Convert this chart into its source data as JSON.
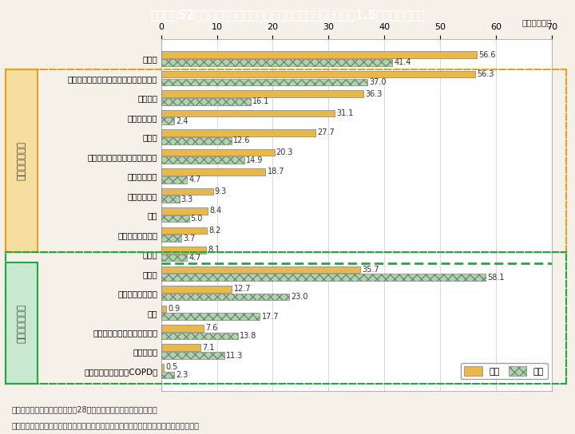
{
  "title": "Ｉ－特－52図　通院者率（人口千対）について，男女差が概ね1.5倍以上あるもの",
  "title_bg": "#4db8c8",
  "title_color": "#ffffff",
  "xlabel": "（人口千対）",
  "xlim": [
    0,
    70
  ],
  "xticks": [
    0,
    10,
    20,
    30,
    40,
    50,
    60,
    70
  ],
  "background": "#f5f0e8",
  "plot_bg": "#ffffff",
  "female_color": "#e8b84b",
  "male_color": "#a8d8a8",
  "male_hatch": "xxx",
  "female_section_label": "女性に多い疾患",
  "male_section_label": "男性に多い疾患",
  "female_section_bg": "#f5dea0",
  "male_section_bg": "#c8e8d0",
  "female_border_color": "#e8a020",
  "male_border_color": "#20a840",
  "categories_female": [
    "腰痛症",
    "脂質異常症（高コレステロール血症等）",
    "肩こり症",
    "骨粗しょう症",
    "関節症",
    "うつ病やその他のこころの病気",
    "甲状腺の病気",
    "関節リウマチ",
    "骨折",
    "貧血，血液の病気",
    "認知症"
  ],
  "female_f": [
    56.6,
    56.3,
    36.3,
    31.1,
    27.7,
    20.3,
    18.7,
    9.3,
    8.4,
    8.2,
    8.1
  ],
  "female_m": [
    41.4,
    37.0,
    16.1,
    2.4,
    12.6,
    14.9,
    4.7,
    3.3,
    5.0,
    3.7,
    4.7
  ],
  "categories_male": [
    "糖尿病",
    "狭心症，心筋梗塞",
    "痛風",
    "脳卒中（脳出血，脳梗塞等）",
    "腎臓の病気",
    "慢性閉塞性肺疾患（COPD）"
  ],
  "male_f": [
    35.7,
    12.7,
    0.9,
    7.6,
    7.1,
    0.5
  ],
  "male_m": [
    58.1,
    23.0,
    17.7,
    13.8,
    11.3,
    2.3
  ],
  "footnote1": "（備考）１．厚生労働省「平成28年国民生活基礎調査」より作成。",
  "footnote2": "　　　　２．通院者には入院者は含まないが，分母となる世帯人員数には入院者を含む。"
}
